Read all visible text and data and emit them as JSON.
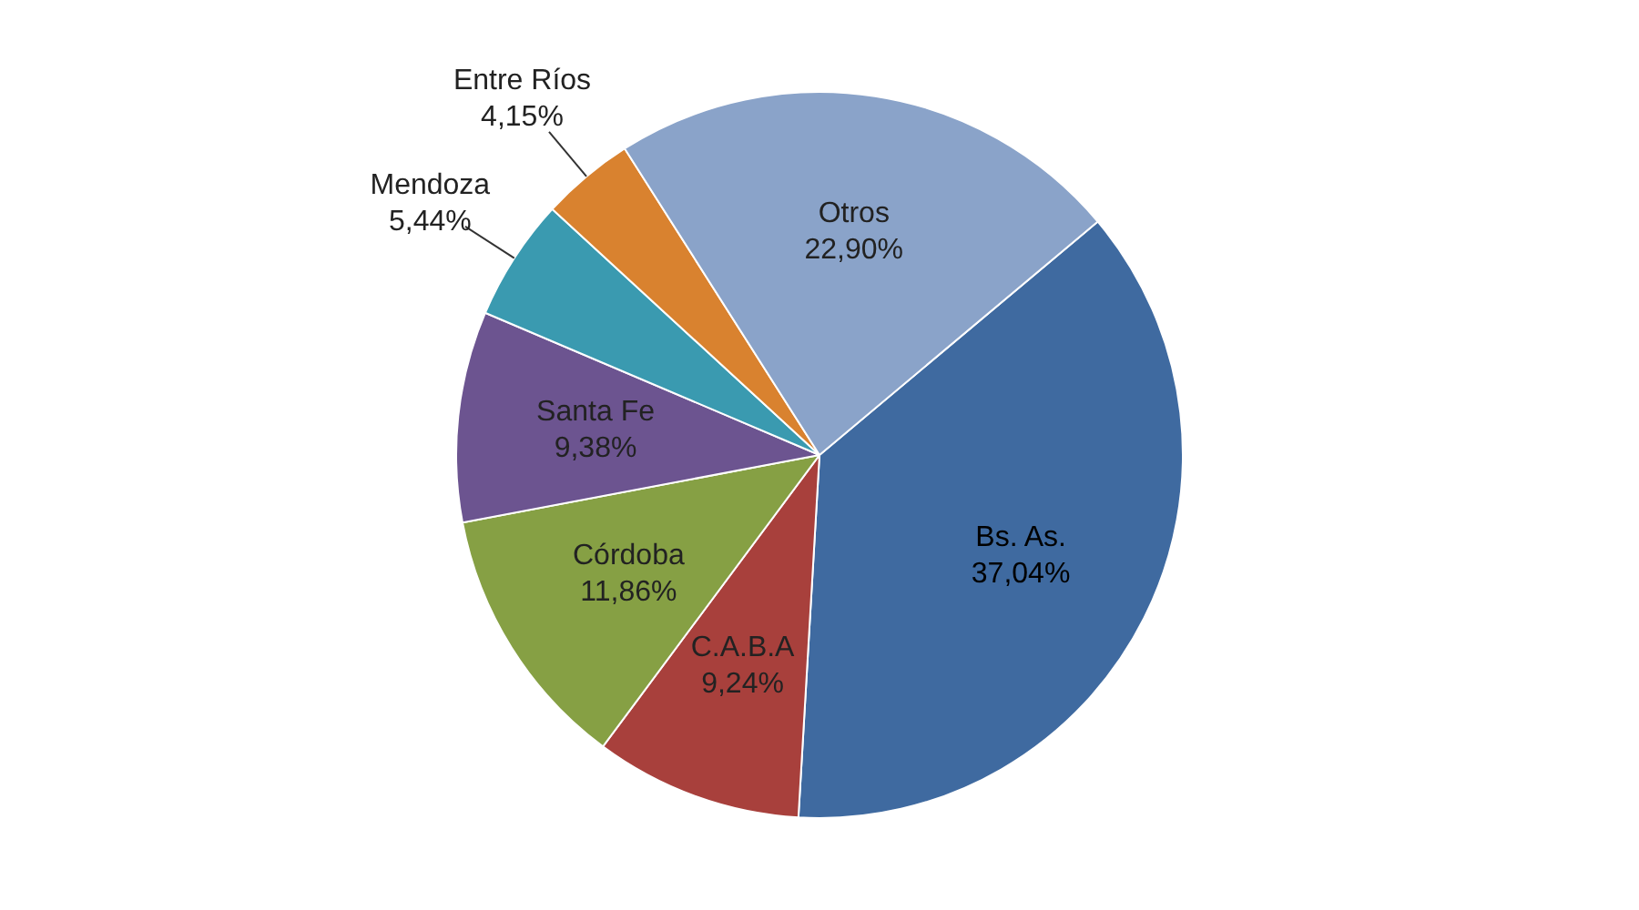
{
  "chart_data": {
    "type": "pie",
    "categories": [
      "Bs. As.",
      "C.A.B.A",
      "Córdoba",
      "Santa Fe",
      "Mendoza",
      "Entre Ríos",
      "Otros"
    ],
    "values": [
      37.04,
      9.24,
      11.86,
      9.38,
      5.44,
      4.15,
      22.9
    ],
    "value_labels": [
      "37,04%",
      "9,24%",
      "11,86%",
      "9,38%",
      "5,44%",
      "4,15%",
      "22,90%"
    ],
    "colors": [
      "#3f6aa0",
      "#a8403c",
      "#86a044",
      "#6c5490",
      "#3a9ab0",
      "#d9822f",
      "#8aa3c9"
    ],
    "legend": false
  }
}
